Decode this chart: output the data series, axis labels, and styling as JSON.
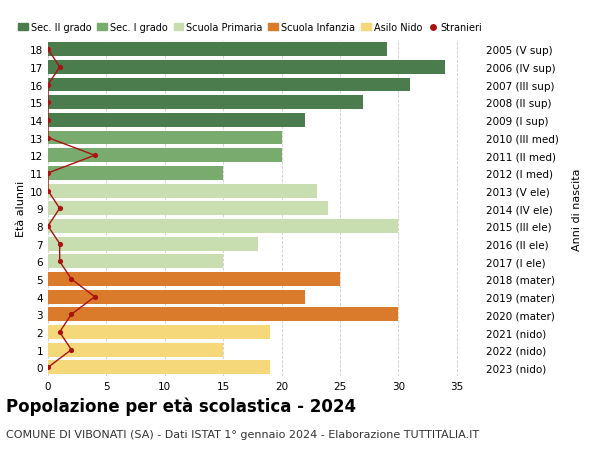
{
  "ages": [
    18,
    17,
    16,
    15,
    14,
    13,
    12,
    11,
    10,
    9,
    8,
    7,
    6,
    5,
    4,
    3,
    2,
    1,
    0
  ],
  "bar_values": [
    29,
    34,
    31,
    27,
    22,
    20,
    20,
    15,
    23,
    24,
    30,
    18,
    15,
    25,
    22,
    30,
    19,
    15,
    19
  ],
  "bar_colors": [
    "#4a7c4e",
    "#4a7c4e",
    "#4a7c4e",
    "#4a7c4e",
    "#4a7c4e",
    "#7aab6e",
    "#7aab6e",
    "#7aab6e",
    "#c8ddb0",
    "#c8ddb0",
    "#c8ddb0",
    "#c8ddb0",
    "#c8ddb0",
    "#d97b2a",
    "#d97b2a",
    "#d97b2a",
    "#f5d87a",
    "#f5d87a",
    "#f5d87a"
  ],
  "stranieri_values": [
    0,
    1,
    0,
    0,
    0,
    0,
    4,
    0,
    0,
    1,
    0,
    1,
    1,
    2,
    4,
    2,
    1,
    2,
    0
  ],
  "right_labels": [
    "2005 (V sup)",
    "2006 (IV sup)",
    "2007 (III sup)",
    "2008 (II sup)",
    "2009 (I sup)",
    "2010 (III med)",
    "2011 (II med)",
    "2012 (I med)",
    "2013 (V ele)",
    "2014 (IV ele)",
    "2015 (III ele)",
    "2016 (II ele)",
    "2017 (I ele)",
    "2018 (mater)",
    "2019 (mater)",
    "2020 (mater)",
    "2021 (nido)",
    "2022 (nido)",
    "2023 (nido)"
  ],
  "ylabel": "Età alunni",
  "right_ylabel": "Anni di nascita",
  "title": "Popolazione per età scolastica - 2024",
  "subtitle": "COMUNE DI VIBONATI (SA) - Dati ISTAT 1° gennaio 2024 - Elaborazione TUTTITALIA.IT",
  "xlim": [
    0,
    37
  ],
  "xticks": [
    0,
    5,
    10,
    15,
    20,
    25,
    30,
    35
  ],
  "legend_labels": [
    "Sec. II grado",
    "Sec. I grado",
    "Scuola Primaria",
    "Scuola Infanzia",
    "Asilo Nido",
    "Stranieri"
  ],
  "legend_colors": [
    "#4a7c4e",
    "#7aab6e",
    "#c8ddb0",
    "#d97b2a",
    "#f5d87a",
    "#aa1111"
  ],
  "bar_height": 0.78,
  "stranieri_color": "#aa1111",
  "stranieri_line_color": "#aa1111",
  "grid_color": "#cccccc",
  "bg_color": "#ffffff",
  "title_fontsize": 12,
  "subtitle_fontsize": 8,
  "ylabel_fontsize": 8,
  "tick_fontsize": 7.5,
  "legend_fontsize": 7
}
